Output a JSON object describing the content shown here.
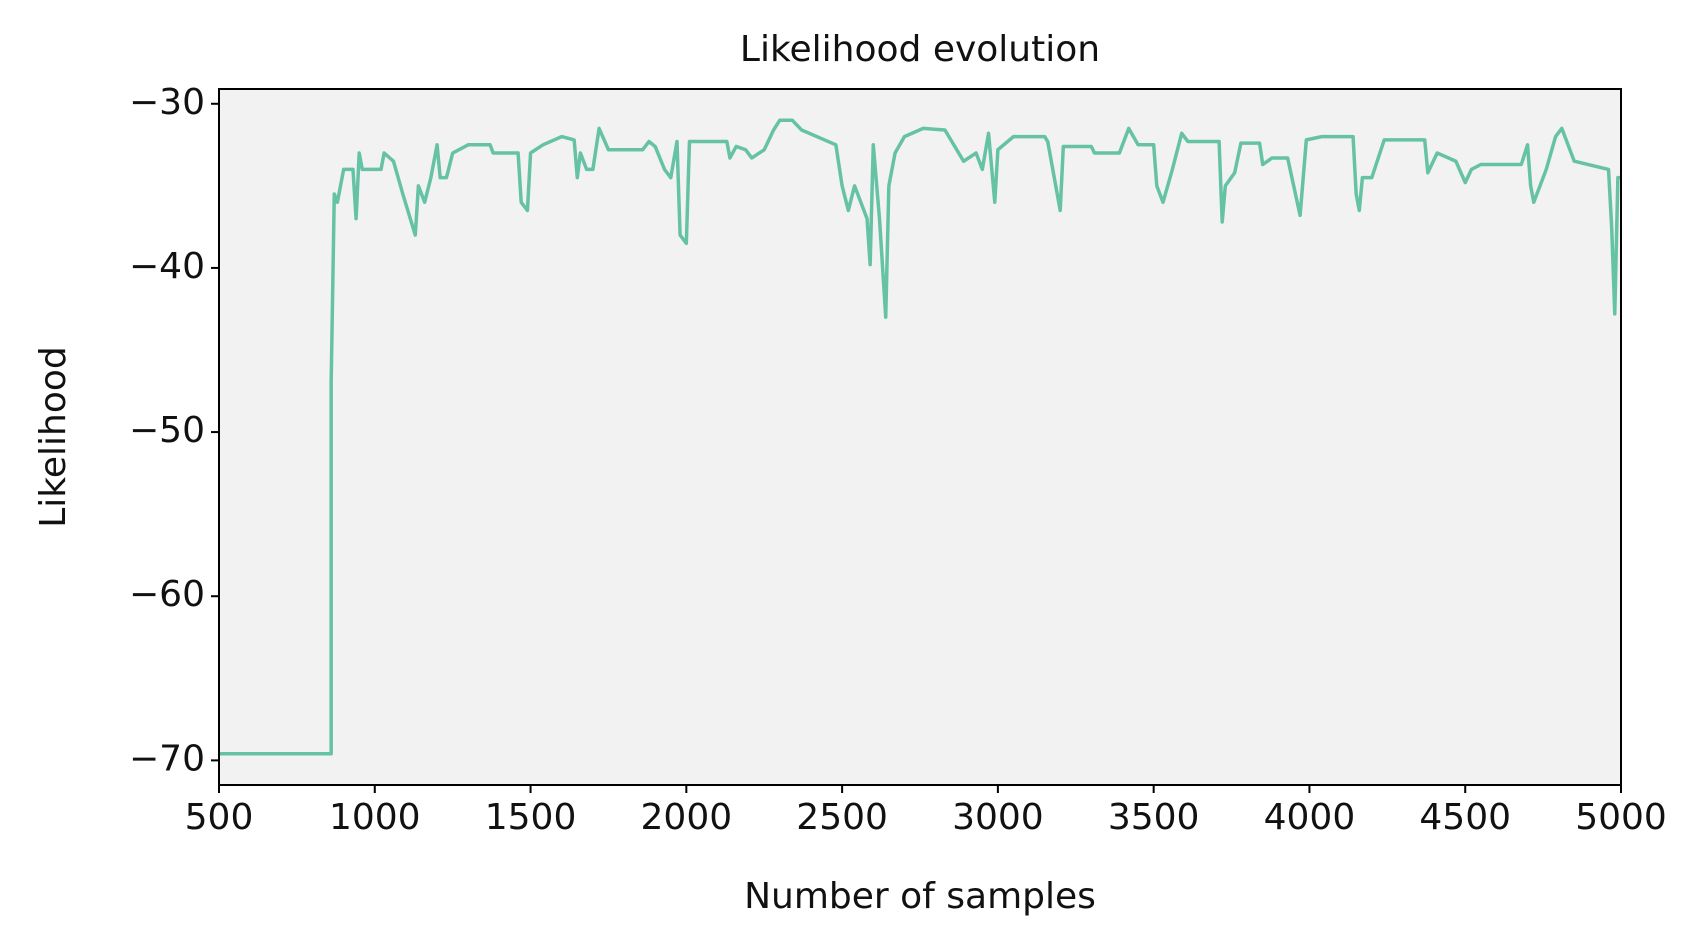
{
  "chart_data": {
    "type": "line",
    "title": "Likelihood evolution",
    "x_label": "Number of samples",
    "y_label": "Likelihood",
    "xlim": [
      500,
      5000
    ],
    "ylim": [
      -71.5,
      -29.1
    ],
    "xticks": [
      500,
      1000,
      1500,
      2000,
      2500,
      3000,
      3500,
      4000,
      4500,
      5000
    ],
    "yticks": [
      {
        "value": -30,
        "label": "−30"
      },
      {
        "value": -40,
        "label": "−40"
      },
      {
        "value": -50,
        "label": "−50"
      },
      {
        "value": -60,
        "label": "−60"
      },
      {
        "value": -70,
        "label": "−70"
      }
    ],
    "grid": false,
    "background": "#f2f2f2",
    "series": [
      {
        "name": "Likelihood",
        "color": "#66c2a5",
        "x": [
          500,
          860,
          860,
          870,
          880,
          900,
          930,
          940,
          950,
          960,
          1020,
          1030,
          1060,
          1090,
          1130,
          1140,
          1160,
          1180,
          1200,
          1210,
          1230,
          1250,
          1300,
          1370,
          1380,
          1460,
          1470,
          1490,
          1500,
          1540,
          1600,
          1640,
          1650,
          1660,
          1680,
          1700,
          1720,
          1750,
          1860,
          1880,
          1900,
          1930,
          1950,
          1970,
          1980,
          2000,
          2010,
          2130,
          2140,
          2160,
          2190,
          2210,
          2250,
          2280,
          2300,
          2340,
          2370,
          2480,
          2500,
          2520,
          2540,
          2580,
          2590,
          2600,
          2620,
          2640,
          2650,
          2670,
          2700,
          2760,
          2830,
          2890,
          2930,
          2950,
          2970,
          2990,
          3000,
          3050,
          3150,
          3160,
          3200,
          3210,
          3300,
          3310,
          3390,
          3420,
          3450,
          3500,
          3510,
          3530,
          3560,
          3590,
          3610,
          3710,
          3720,
          3730,
          3760,
          3780,
          3840,
          3850,
          3880,
          3930,
          3970,
          3990,
          4040,
          4140,
          4150,
          4160,
          4170,
          4200,
          4240,
          4370,
          4380,
          4410,
          4470,
          4500,
          4520,
          4550,
          4680,
          4700,
          4710,
          4720,
          4740,
          4760,
          4790,
          4810,
          4850,
          4960,
          4970,
          4980,
          4990,
          5000
        ],
        "values": [
          -69.6,
          -69.6,
          -47,
          -35.5,
          -36,
          -34,
          -34,
          -37,
          -33,
          -34,
          -34,
          -33,
          -33.5,
          -35.5,
          -38,
          -35,
          -36,
          -34.5,
          -32.5,
          -34.5,
          -34.5,
          -33,
          -32.5,
          -32.5,
          -33,
          -33,
          -36,
          -36.5,
          -33,
          -32.5,
          -32,
          -32.2,
          -34.5,
          -33,
          -34,
          -34,
          -31.5,
          -32.8,
          -32.8,
          -32.3,
          -32.6,
          -34,
          -34.5,
          -32.3,
          -38,
          -38.5,
          -32.3,
          -32.3,
          -33.3,
          -32.6,
          -32.8,
          -33.3,
          -32.8,
          -31.6,
          -31,
          -31,
          -31.6,
          -32.5,
          -35,
          -36.5,
          -35,
          -37,
          -39.8,
          -32.5,
          -37,
          -43,
          -35,
          -33,
          -32,
          -31.5,
          -31.6,
          -33.5,
          -33,
          -34,
          -31.8,
          -36,
          -32.8,
          -32,
          -32,
          -32.3,
          -36.5,
          -32.6,
          -32.6,
          -33,
          -33,
          -31.5,
          -32.5,
          -32.5,
          -35,
          -36,
          -34,
          -31.8,
          -32.3,
          -32.3,
          -37.2,
          -35,
          -34.2,
          -32.4,
          -32.4,
          -33.7,
          -33.3,
          -33.3,
          -36.8,
          -32.2,
          -32,
          -32,
          -35.5,
          -36.5,
          -34.5,
          -34.5,
          -32.2,
          -32.2,
          -34.2,
          -33,
          -33.5,
          -34.8,
          -34,
          -33.7,
          -33.7,
          -32.5,
          -35,
          -36,
          -35,
          -34,
          -32,
          -31.5,
          -33.5,
          -34,
          -37.5,
          -42.8,
          -34.5,
          -34.5
        ]
      }
    ]
  }
}
